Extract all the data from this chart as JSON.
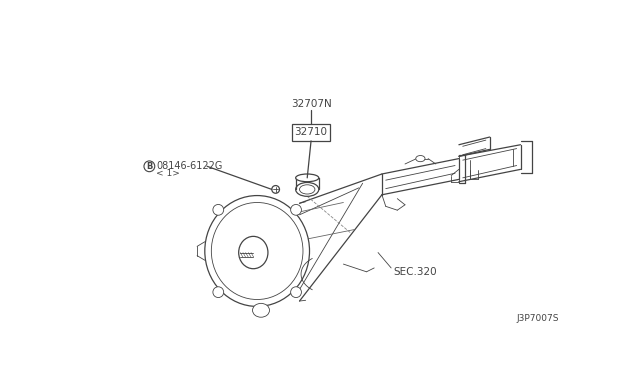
{
  "bg_color": "#ffffff",
  "line_color": "#444444",
  "text_color": "#444444",
  "fig_width": 6.4,
  "fig_height": 3.72,
  "dpi": 100,
  "diagram_id": "J3P7007S",
  "label_32707N": "32707N",
  "label_32710": "32710",
  "label_B_text": "08146-6122G",
  "label_B_sub": "< 1>",
  "label_SEC320": "SEC.320",
  "lw_main": 0.9,
  "lw_thin": 0.6,
  "fontsize_label": 7.5,
  "fontsize_small": 6.5,
  "fontsize_id": 6.5
}
